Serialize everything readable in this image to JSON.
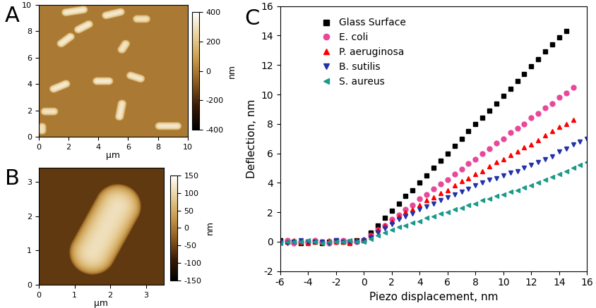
{
  "chart_data": [
    {
      "type": "image",
      "title": "A",
      "x_label": "µm",
      "xlim": [
        0,
        10
      ],
      "ylim": [
        0,
        10
      ],
      "xticks": [
        0,
        2,
        4,
        6,
        8,
        10
      ],
      "yticks": [
        0,
        2,
        4,
        6,
        8,
        10
      ],
      "colorbar": {
        "range": [
          -400,
          400
        ],
        "ticks": [
          -400,
          -200,
          0,
          200,
          400
        ],
        "label": "nm"
      },
      "background": 0,
      "cells": [
        {
          "x": 2.4,
          "y": 9.5,
          "length": 1.8,
          "width": 0.6,
          "angle": 10,
          "height": 330
        },
        {
          "x": 5.0,
          "y": 9.3,
          "length": 1.6,
          "width": 0.6,
          "angle": 15,
          "height": 320
        },
        {
          "x": 3.0,
          "y": 8.3,
          "length": 1.4,
          "width": 0.6,
          "angle": 30,
          "height": 330
        },
        {
          "x": 6.9,
          "y": 8.9,
          "length": 1.2,
          "width": 0.6,
          "angle": 0,
          "height": 300
        },
        {
          "x": 1.8,
          "y": 7.3,
          "length": 1.4,
          "width": 0.6,
          "angle": 40,
          "height": 330
        },
        {
          "x": 5.7,
          "y": 6.8,
          "length": 1.1,
          "width": 0.6,
          "angle": 60,
          "height": 310
        },
        {
          "x": 4.3,
          "y": 4.2,
          "length": 1.4,
          "width": 0.6,
          "angle": 0,
          "height": 330
        },
        {
          "x": 6.5,
          "y": 4.5,
          "length": 1.3,
          "width": 0.6,
          "angle": -20,
          "height": 320
        },
        {
          "x": 1.4,
          "y": 3.8,
          "length": 1.5,
          "width": 0.6,
          "angle": 25,
          "height": 330
        },
        {
          "x": 5.5,
          "y": 2.0,
          "length": 1.6,
          "width": 0.6,
          "angle": 80,
          "height": 320
        },
        {
          "x": 0.7,
          "y": 1.9,
          "length": 1.2,
          "width": 0.6,
          "angle": 0,
          "height": 310
        },
        {
          "x": 0.2,
          "y": 0.6,
          "length": 0.9,
          "width": 0.6,
          "angle": 90,
          "height": 300
        },
        {
          "x": 8.7,
          "y": 0.8,
          "length": 1.8,
          "width": 0.6,
          "angle": 0,
          "height": 320
        }
      ]
    },
    {
      "type": "image",
      "title": "B",
      "x_label": "µm",
      "xlim": [
        0,
        3.5
      ],
      "ylim": [
        0,
        3.4
      ],
      "xticks": [
        0,
        1,
        2,
        3
      ],
      "yticks": [
        0,
        1,
        2,
        3
      ],
      "colorbar": {
        "range": [
          -150,
          150
        ],
        "ticks": [
          -150,
          -100,
          -50,
          0,
          50,
          100,
          150
        ],
        "label": "nm"
      },
      "background": -60,
      "cells": [
        {
          "x": 1.85,
          "y": 1.6,
          "length": 2.8,
          "width": 1.3,
          "angle": 62,
          "height": 110
        }
      ]
    },
    {
      "type": "scatter",
      "title": "C",
      "x_label": "Piezo displacement, nm",
      "y_label": "Deflection, nm",
      "xlim": [
        -6,
        16
      ],
      "ylim": [
        -2,
        16
      ],
      "xticks": [
        -6,
        -4,
        -2,
        0,
        2,
        4,
        6,
        8,
        10,
        12,
        14,
        16
      ],
      "yticks": [
        -2,
        0,
        2,
        4,
        6,
        8,
        10,
        12,
        14,
        16
      ],
      "legend": "upper left",
      "series": [
        {
          "name": "Glass Surface",
          "color": "#000000",
          "marker": "square",
          "x": [
            -6,
            -5.5,
            -5,
            -4.5,
            -4,
            -3.5,
            -3,
            -2.5,
            -2,
            -1.5,
            -1,
            -0.5,
            0,
            0.5,
            1,
            1.5,
            2,
            2.5,
            3,
            3.5,
            4,
            4.5,
            5,
            5.5,
            6,
            6.5,
            7,
            7.5,
            8,
            8.5,
            9,
            9.5,
            10,
            10.5,
            11,
            11.5,
            12,
            12.5,
            13,
            13.5,
            14,
            14.5
          ],
          "values": [
            0.1,
            0.0,
            0.0,
            -0.1,
            0.0,
            0.0,
            -0.1,
            0.0,
            0.1,
            0.0,
            0.0,
            0.1,
            0.1,
            0.6,
            1.1,
            1.6,
            2.1,
            2.6,
            3.1,
            3.5,
            4.0,
            4.5,
            5.0,
            5.5,
            6.0,
            6.5,
            7.0,
            7.5,
            8.0,
            8.4,
            8.9,
            9.4,
            9.9,
            10.4,
            10.9,
            11.4,
            11.9,
            12.4,
            12.9,
            13.4,
            13.9,
            14.3
          ]
        },
        {
          "name": "E. coli",
          "color": "#e8489a",
          "marker": "circle",
          "x": [
            -6,
            -5.5,
            -5,
            -4.5,
            -4,
            -3.5,
            -3,
            -2.5,
            -2,
            -1.5,
            -1,
            -0.5,
            0,
            0.5,
            1,
            1.5,
            2,
            2.5,
            3,
            3.5,
            4,
            4.5,
            5,
            5.5,
            6,
            6.5,
            7,
            7.5,
            8,
            8.5,
            9,
            9.5,
            10,
            10.5,
            11,
            11.5,
            12,
            12.5,
            13,
            13.5,
            14,
            14.5,
            15
          ],
          "values": [
            0.0,
            0.1,
            -0.1,
            0.0,
            0.0,
            0.1,
            0.0,
            -0.1,
            0.0,
            0.1,
            0.0,
            0.0,
            0.1,
            0.4,
            0.8,
            1.1,
            1.5,
            1.8,
            2.2,
            2.5,
            2.9,
            3.2,
            3.6,
            3.9,
            4.2,
            4.6,
            4.9,
            5.3,
            5.6,
            6.0,
            6.3,
            6.7,
            7.0,
            7.4,
            7.7,
            8.0,
            8.4,
            8.7,
            9.1,
            9.4,
            9.8,
            10.1,
            10.5
          ]
        },
        {
          "name": "P. aeruginosa",
          "color": "#ff0000",
          "marker": "triangle_up",
          "x": [
            -6,
            -5.5,
            -5,
            -4.5,
            -4,
            -3.5,
            -3,
            -2.5,
            -2,
            -1.5,
            -1,
            -0.5,
            0,
            0.5,
            1,
            1.5,
            2,
            2.5,
            3,
            3.5,
            4,
            4.5,
            5,
            5.5,
            6,
            6.5,
            7,
            7.5,
            8,
            8.5,
            9,
            9.5,
            10,
            10.5,
            11,
            11.5,
            12,
            12.5,
            13,
            13.5,
            14,
            14.5,
            15
          ],
          "values": [
            0.0,
            0.0,
            0.1,
            0.0,
            -0.1,
            0.0,
            0.0,
            0.1,
            0.0,
            0.0,
            -0.1,
            0.1,
            0.2,
            0.4,
            0.8,
            1.1,
            1.4,
            1.7,
            2.0,
            2.2,
            2.5,
            2.8,
            3.0,
            3.3,
            3.5,
            3.8,
            4.1,
            4.3,
            4.6,
            4.8,
            5.1,
            5.4,
            5.6,
            5.9,
            6.1,
            6.4,
            6.6,
            6.9,
            7.2,
            7.5,
            7.8,
            8.0,
            8.3
          ]
        },
        {
          "name": "B. sutilis",
          "color": "#2233aa",
          "marker": "triangle_down",
          "x": [
            -6,
            -5.5,
            -5,
            -4.5,
            -4,
            -3.5,
            -3,
            -2.5,
            -2,
            -1.5,
            -1,
            -0.5,
            0,
            0.5,
            1,
            1.5,
            2,
            2.5,
            3,
            3.5,
            4,
            4.5,
            5,
            5.5,
            6,
            6.5,
            7,
            7.5,
            8,
            8.5,
            9,
            9.5,
            10,
            10.5,
            11,
            11.5,
            12,
            12.5,
            13,
            13.5,
            14,
            14.5,
            15,
            15.5,
            16
          ],
          "values": [
            0.0,
            -0.1,
            0.0,
            0.1,
            0.0,
            0.0,
            0.0,
            -0.1,
            0.1,
            0.0,
            0.0,
            0.0,
            0.1,
            0.3,
            0.6,
            0.9,
            1.2,
            1.5,
            1.7,
            1.9,
            2.2,
            2.4,
            2.6,
            2.8,
            3.0,
            3.2,
            3.4,
            3.6,
            3.8,
            4.0,
            4.2,
            4.3,
            4.5,
            4.7,
            4.8,
            5.0,
            5.2,
            5.4,
            5.6,
            5.8,
            6.1,
            6.3,
            6.6,
            6.8,
            7.0
          ]
        },
        {
          "name": "S. aureus",
          "color": "#1a9a8a",
          "marker": "triangle_left",
          "x": [
            -6,
            -5.5,
            -5,
            -4.5,
            -4,
            -3.5,
            -3,
            -2.5,
            -2,
            -1.5,
            -1,
            -0.5,
            0,
            0.5,
            1,
            1.5,
            2,
            2.5,
            3,
            3.5,
            4,
            4.5,
            5,
            5.5,
            6,
            6.5,
            7,
            7.5,
            8,
            8.5,
            9,
            9.5,
            10,
            10.5,
            11,
            11.5,
            12,
            12.5,
            13,
            13.5,
            14,
            14.5,
            15,
            15.5,
            16
          ],
          "values": [
            -0.1,
            0.0,
            0.0,
            0.0,
            0.1,
            0.0,
            -0.1,
            0.0,
            0.0,
            0.0,
            0.1,
            0.0,
            0.0,
            0.2,
            0.4,
            0.6,
            0.8,
            1.0,
            1.1,
            1.3,
            1.4,
            1.6,
            1.7,
            1.9,
            2.0,
            2.2,
            2.3,
            2.5,
            2.6,
            2.8,
            2.9,
            3.1,
            3.2,
            3.4,
            3.5,
            3.7,
            3.8,
            4.0,
            4.2,
            4.4,
            4.6,
            4.8,
            5.0,
            5.2,
            5.4
          ]
        }
      ]
    }
  ]
}
